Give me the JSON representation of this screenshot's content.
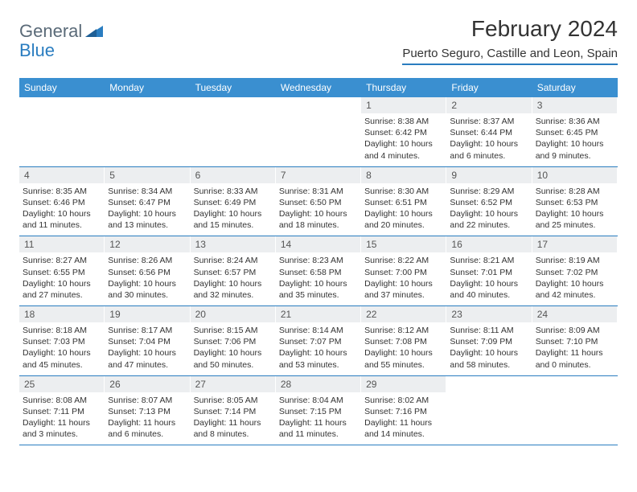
{
  "logo": {
    "text1": "General",
    "text2": "Blue",
    "text1_color": "#5a6a78",
    "text2_color": "#2a7dc0",
    "icon_color": "#2a7dc0"
  },
  "header": {
    "month_title": "February 2024",
    "location": "Puerto Seguro, Castille and Leon, Spain"
  },
  "colors": {
    "header_bar": "#3a8fd0",
    "accent_line": "#2a7dc0",
    "day_num_bg": "#eceef0",
    "text": "#333333",
    "background": "#ffffff"
  },
  "day_names": [
    "Sunday",
    "Monday",
    "Tuesday",
    "Wednesday",
    "Thursday",
    "Friday",
    "Saturday"
  ],
  "weeks": [
    [
      {
        "n": "",
        "sunrise": "",
        "sunset": "",
        "daylight": "",
        "empty": true
      },
      {
        "n": "",
        "sunrise": "",
        "sunset": "",
        "daylight": "",
        "empty": true
      },
      {
        "n": "",
        "sunrise": "",
        "sunset": "",
        "daylight": "",
        "empty": true
      },
      {
        "n": "",
        "sunrise": "",
        "sunset": "",
        "daylight": "",
        "empty": true
      },
      {
        "n": "1",
        "sunrise": "Sunrise: 8:38 AM",
        "sunset": "Sunset: 6:42 PM",
        "daylight": "Daylight: 10 hours and 4 minutes."
      },
      {
        "n": "2",
        "sunrise": "Sunrise: 8:37 AM",
        "sunset": "Sunset: 6:44 PM",
        "daylight": "Daylight: 10 hours and 6 minutes."
      },
      {
        "n": "3",
        "sunrise": "Sunrise: 8:36 AM",
        "sunset": "Sunset: 6:45 PM",
        "daylight": "Daylight: 10 hours and 9 minutes."
      }
    ],
    [
      {
        "n": "4",
        "sunrise": "Sunrise: 8:35 AM",
        "sunset": "Sunset: 6:46 PM",
        "daylight": "Daylight: 10 hours and 11 minutes."
      },
      {
        "n": "5",
        "sunrise": "Sunrise: 8:34 AM",
        "sunset": "Sunset: 6:47 PM",
        "daylight": "Daylight: 10 hours and 13 minutes."
      },
      {
        "n": "6",
        "sunrise": "Sunrise: 8:33 AM",
        "sunset": "Sunset: 6:49 PM",
        "daylight": "Daylight: 10 hours and 15 minutes."
      },
      {
        "n": "7",
        "sunrise": "Sunrise: 8:31 AM",
        "sunset": "Sunset: 6:50 PM",
        "daylight": "Daylight: 10 hours and 18 minutes."
      },
      {
        "n": "8",
        "sunrise": "Sunrise: 8:30 AM",
        "sunset": "Sunset: 6:51 PM",
        "daylight": "Daylight: 10 hours and 20 minutes."
      },
      {
        "n": "9",
        "sunrise": "Sunrise: 8:29 AM",
        "sunset": "Sunset: 6:52 PM",
        "daylight": "Daylight: 10 hours and 22 minutes."
      },
      {
        "n": "10",
        "sunrise": "Sunrise: 8:28 AM",
        "sunset": "Sunset: 6:53 PM",
        "daylight": "Daylight: 10 hours and 25 minutes."
      }
    ],
    [
      {
        "n": "11",
        "sunrise": "Sunrise: 8:27 AM",
        "sunset": "Sunset: 6:55 PM",
        "daylight": "Daylight: 10 hours and 27 minutes."
      },
      {
        "n": "12",
        "sunrise": "Sunrise: 8:26 AM",
        "sunset": "Sunset: 6:56 PM",
        "daylight": "Daylight: 10 hours and 30 minutes."
      },
      {
        "n": "13",
        "sunrise": "Sunrise: 8:24 AM",
        "sunset": "Sunset: 6:57 PM",
        "daylight": "Daylight: 10 hours and 32 minutes."
      },
      {
        "n": "14",
        "sunrise": "Sunrise: 8:23 AM",
        "sunset": "Sunset: 6:58 PM",
        "daylight": "Daylight: 10 hours and 35 minutes."
      },
      {
        "n": "15",
        "sunrise": "Sunrise: 8:22 AM",
        "sunset": "Sunset: 7:00 PM",
        "daylight": "Daylight: 10 hours and 37 minutes."
      },
      {
        "n": "16",
        "sunrise": "Sunrise: 8:21 AM",
        "sunset": "Sunset: 7:01 PM",
        "daylight": "Daylight: 10 hours and 40 minutes."
      },
      {
        "n": "17",
        "sunrise": "Sunrise: 8:19 AM",
        "sunset": "Sunset: 7:02 PM",
        "daylight": "Daylight: 10 hours and 42 minutes."
      }
    ],
    [
      {
        "n": "18",
        "sunrise": "Sunrise: 8:18 AM",
        "sunset": "Sunset: 7:03 PM",
        "daylight": "Daylight: 10 hours and 45 minutes."
      },
      {
        "n": "19",
        "sunrise": "Sunrise: 8:17 AM",
        "sunset": "Sunset: 7:04 PM",
        "daylight": "Daylight: 10 hours and 47 minutes."
      },
      {
        "n": "20",
        "sunrise": "Sunrise: 8:15 AM",
        "sunset": "Sunset: 7:06 PM",
        "daylight": "Daylight: 10 hours and 50 minutes."
      },
      {
        "n": "21",
        "sunrise": "Sunrise: 8:14 AM",
        "sunset": "Sunset: 7:07 PM",
        "daylight": "Daylight: 10 hours and 53 minutes."
      },
      {
        "n": "22",
        "sunrise": "Sunrise: 8:12 AM",
        "sunset": "Sunset: 7:08 PM",
        "daylight": "Daylight: 10 hours and 55 minutes."
      },
      {
        "n": "23",
        "sunrise": "Sunrise: 8:11 AM",
        "sunset": "Sunset: 7:09 PM",
        "daylight": "Daylight: 10 hours and 58 minutes."
      },
      {
        "n": "24",
        "sunrise": "Sunrise: 8:09 AM",
        "sunset": "Sunset: 7:10 PM",
        "daylight": "Daylight: 11 hours and 0 minutes."
      }
    ],
    [
      {
        "n": "25",
        "sunrise": "Sunrise: 8:08 AM",
        "sunset": "Sunset: 7:11 PM",
        "daylight": "Daylight: 11 hours and 3 minutes."
      },
      {
        "n": "26",
        "sunrise": "Sunrise: 8:07 AM",
        "sunset": "Sunset: 7:13 PM",
        "daylight": "Daylight: 11 hours and 6 minutes."
      },
      {
        "n": "27",
        "sunrise": "Sunrise: 8:05 AM",
        "sunset": "Sunset: 7:14 PM",
        "daylight": "Daylight: 11 hours and 8 minutes."
      },
      {
        "n": "28",
        "sunrise": "Sunrise: 8:04 AM",
        "sunset": "Sunset: 7:15 PM",
        "daylight": "Daylight: 11 hours and 11 minutes."
      },
      {
        "n": "29",
        "sunrise": "Sunrise: 8:02 AM",
        "sunset": "Sunset: 7:16 PM",
        "daylight": "Daylight: 11 hours and 14 minutes."
      },
      {
        "n": "",
        "sunrise": "",
        "sunset": "",
        "daylight": "",
        "empty": true
      },
      {
        "n": "",
        "sunrise": "",
        "sunset": "",
        "daylight": "",
        "empty": true
      }
    ]
  ]
}
